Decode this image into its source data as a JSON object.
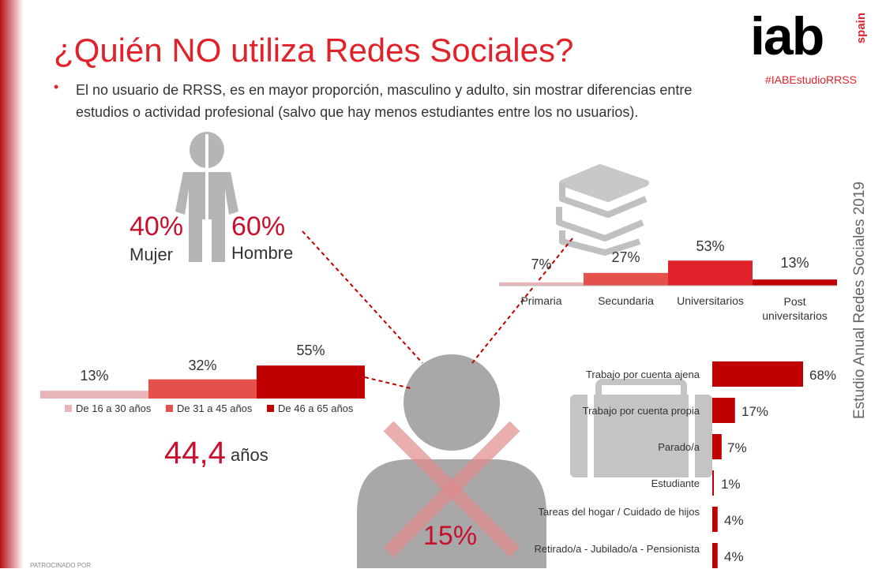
{
  "header": {
    "title": "¿Quién NO utiliza Redes Sociales?",
    "logo_text": "iab",
    "logo_sub": "spain",
    "hashtag": "#IABEstudioRRSS",
    "bullet_text": "El no usuario de RRSS, es en mayor proporción, masculino y adulto, sin mostrar diferencias entre estudios o actividad profesional (salvo que hay menos estudiantes entre los no usuarios).",
    "side_text": "Estudio Anual Redes Sociales 2019",
    "footer_text": "PATROCINADO POR"
  },
  "colors": {
    "brand_red": "#e0232b",
    "dark_red": "#c00000",
    "mid_red": "#e5504a",
    "light_pink": "#e8b4b8",
    "icon_gray": "#b5b5b5"
  },
  "icons": [
    "person-icon",
    "books-icon",
    "briefcase-icon",
    "user-icon",
    "cross-icon"
  ],
  "center": {
    "value": "15%"
  },
  "chart_data": [
    {
      "type": "pie",
      "id": "gender",
      "categories": [
        "Mujer",
        "Hombre"
      ],
      "values": [
        40,
        60
      ],
      "labels": [
        "40%",
        "60%"
      ]
    },
    {
      "type": "bar",
      "id": "education",
      "categories": [
        "Primaria",
        "Secundaria",
        "Universitarios",
        "Post universitarios"
      ],
      "values": [
        7,
        27,
        53,
        13
      ],
      "labels": [
        "7%",
        "27%",
        "53%",
        "13%"
      ],
      "colors": [
        "#e8b4b8",
        "#e5504a",
        "#e0232b",
        "#c00000"
      ]
    },
    {
      "type": "bar",
      "id": "age",
      "categories": [
        "De 16 a 30 años",
        "De 31 a 45 años",
        "De 46 a 65 años"
      ],
      "values": [
        13,
        32,
        55
      ],
      "labels": [
        "13%",
        "32%",
        "55%"
      ],
      "colors": [
        "#e8b4b8",
        "#e5504a",
        "#c00000"
      ],
      "average_value": "44,4",
      "average_unit": "años"
    },
    {
      "type": "bar",
      "id": "occupation",
      "orientation": "horizontal",
      "categories": [
        "Trabajo por cuenta ajena",
        "Trabajo por cuenta propia",
        "Parado/a",
        "Estudiante",
        "Tareas del hogar / Cuidado de hijos",
        "Retirado/a - Jubilado/a - Pensionista"
      ],
      "values": [
        68,
        17,
        7,
        1,
        4,
        4
      ],
      "labels": [
        "68%",
        "17%",
        "7%",
        "1%",
        "4%",
        "4%"
      ],
      "color": "#c00000"
    }
  ]
}
